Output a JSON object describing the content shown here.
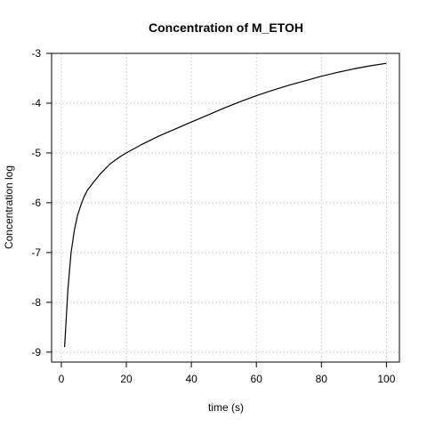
{
  "chart_data": {
    "type": "line",
    "title": "Concentration of M_ETOH",
    "xlabel": "time (s)",
    "ylabel": "Concentration log",
    "xlim": [
      -3,
      104
    ],
    "ylim": [
      -9.2,
      -3.0
    ],
    "x_ticks": [
      0,
      20,
      40,
      60,
      80,
      100
    ],
    "x_tick_labels": [
      "0",
      "20",
      "40",
      "60",
      "80",
      "100"
    ],
    "y_ticks": [
      -9,
      -8,
      -7,
      -6,
      -5,
      -4,
      -3
    ],
    "y_tick_labels": [
      "-9",
      "-8",
      "-7",
      "-6",
      "-5",
      "-4",
      "-3"
    ],
    "grid": true,
    "colors": {
      "line": "#000000",
      "grid": "#d3d3d3",
      "axis": "#000000"
    },
    "series": [
      {
        "x": [
          1,
          2,
          3,
          4,
          5,
          6,
          7,
          8,
          10,
          12,
          15,
          18,
          20,
          25,
          30,
          35,
          40,
          45,
          50,
          55,
          60,
          65,
          70,
          75,
          80,
          85,
          90,
          95,
          100
        ],
        "y": [
          -8.9,
          -7.75,
          -7.0,
          -6.55,
          -6.25,
          -6.05,
          -5.88,
          -5.75,
          -5.58,
          -5.42,
          -5.22,
          -5.08,
          -5.0,
          -4.82,
          -4.66,
          -4.52,
          -4.38,
          -4.24,
          -4.1,
          -3.97,
          -3.85,
          -3.74,
          -3.64,
          -3.55,
          -3.46,
          -3.38,
          -3.31,
          -3.25,
          -3.2
        ]
      }
    ]
  }
}
